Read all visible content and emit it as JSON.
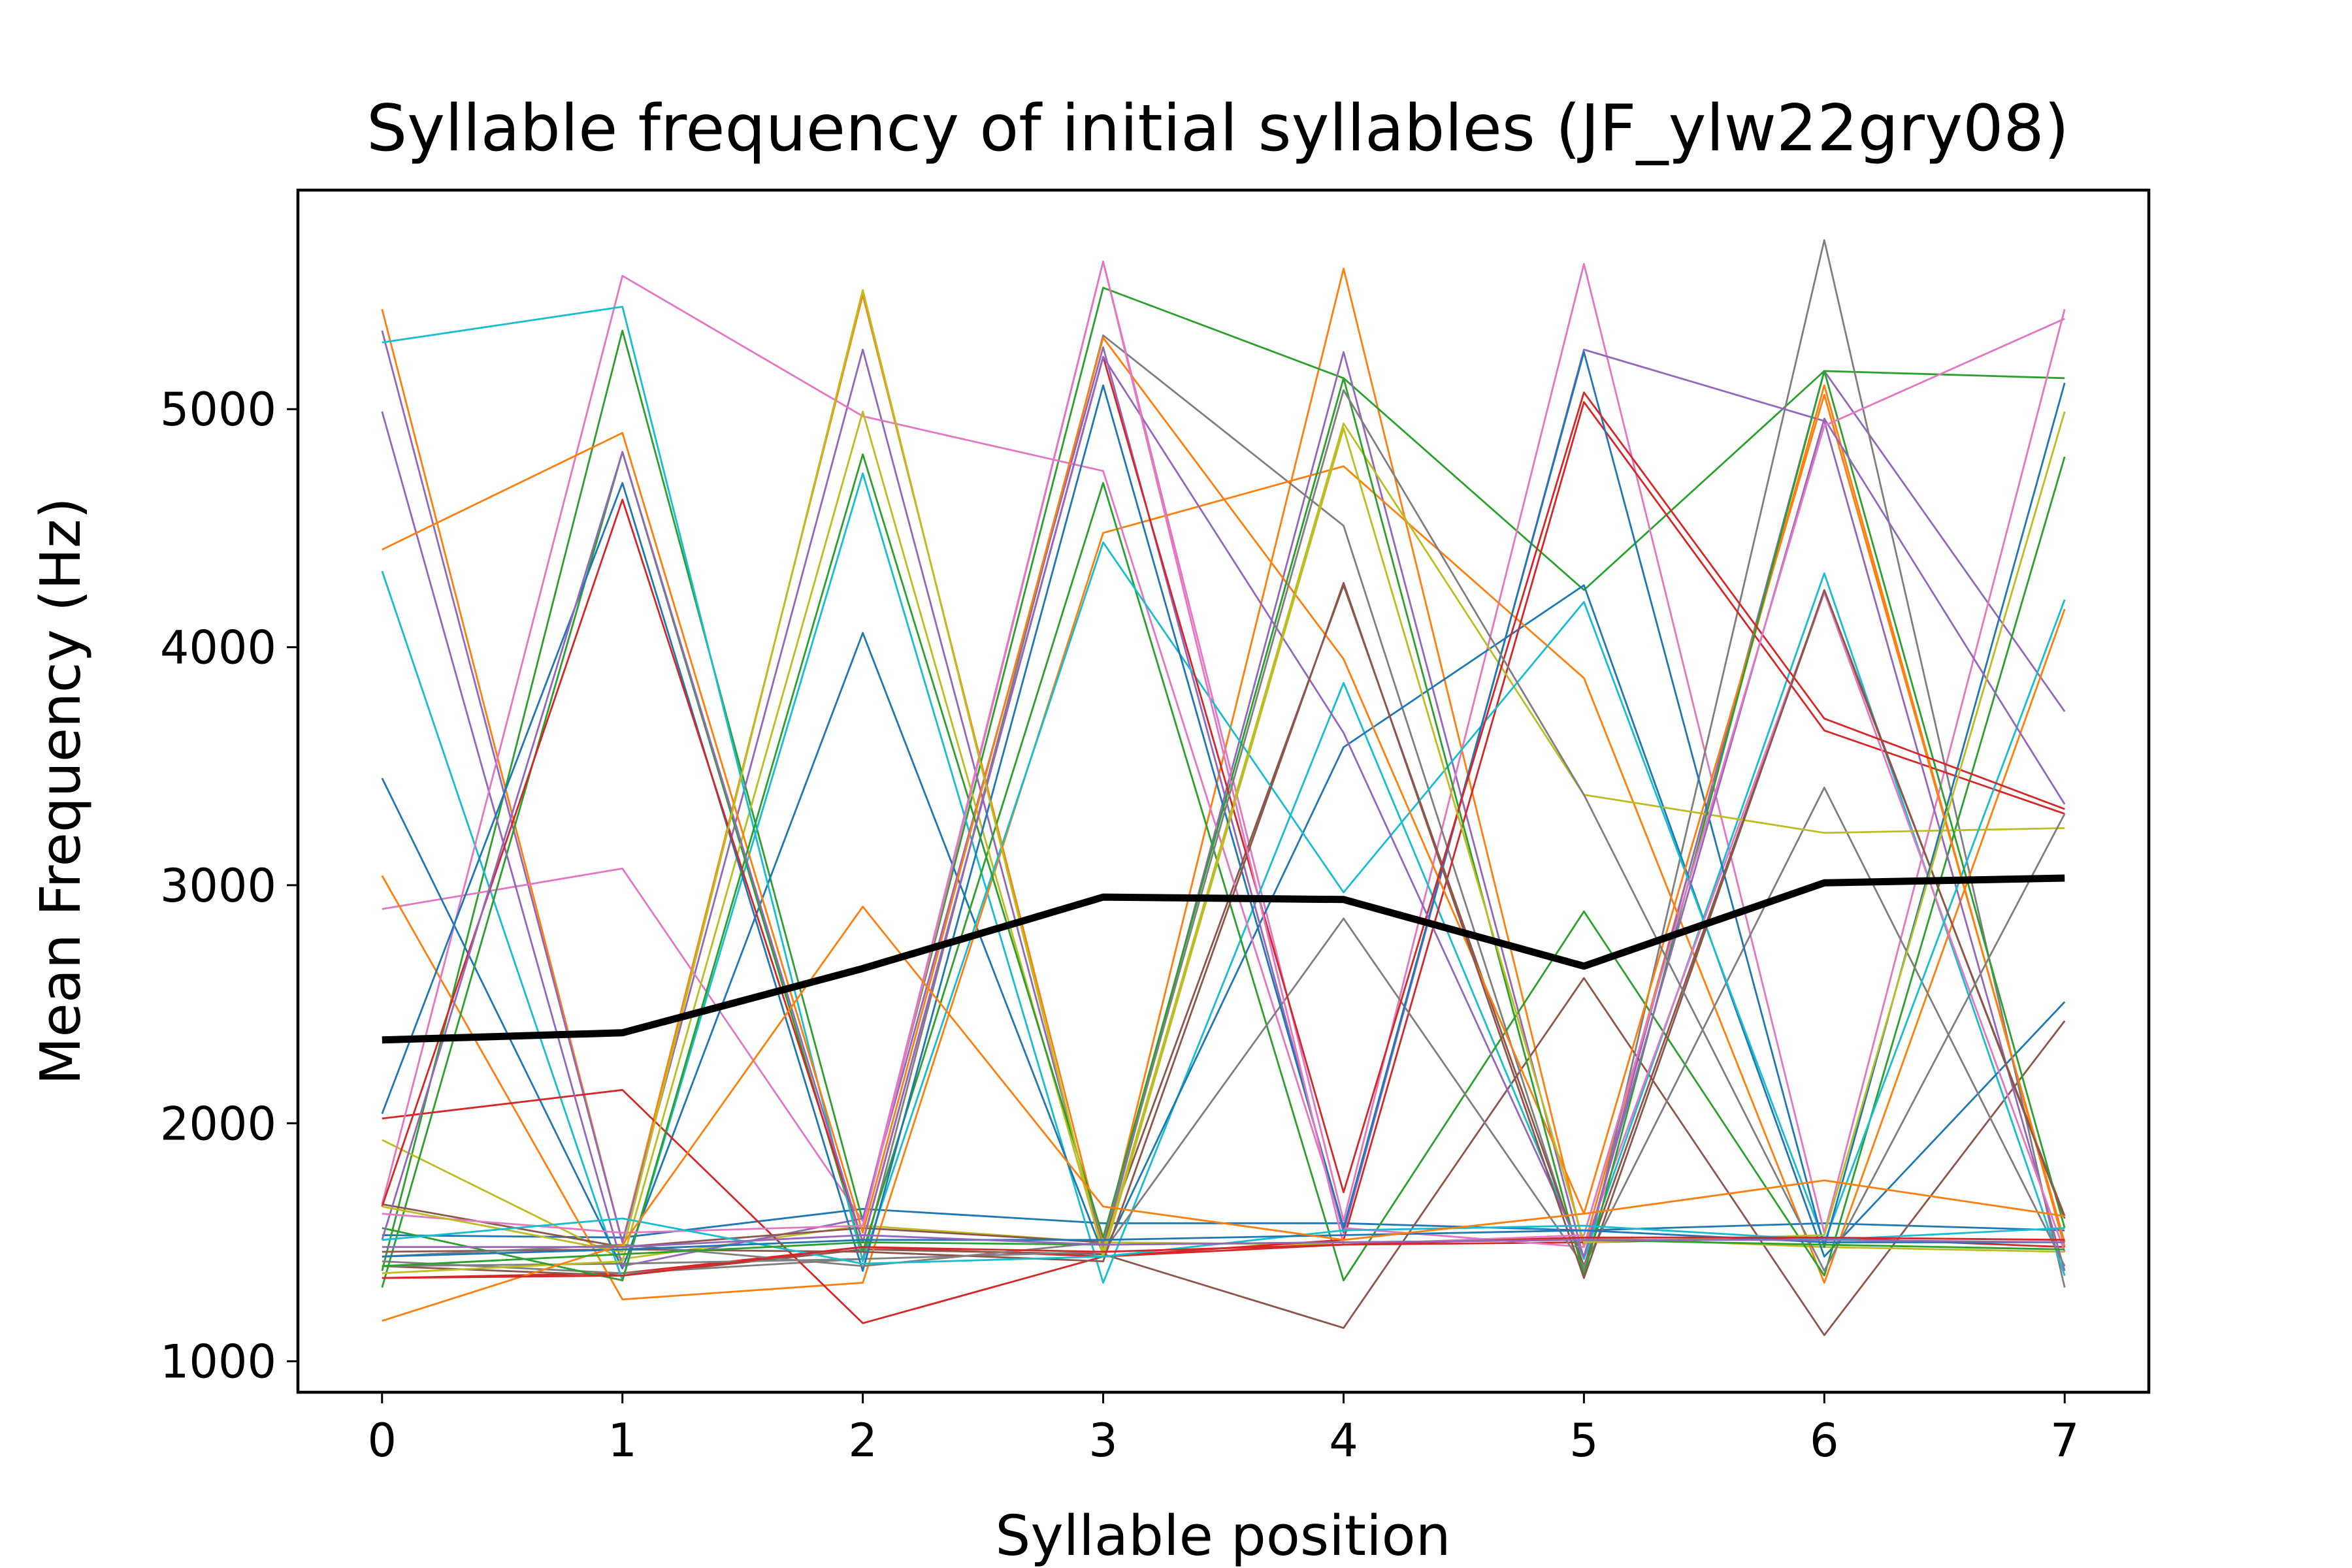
{
  "chart_data": {
    "type": "line",
    "title": "Syllable frequency of initial syllables (JF_ylw22gry08)",
    "xlabel": "Syllable position",
    "ylabel": "Mean Frequency (Hz)",
    "x": [
      0,
      1,
      2,
      3,
      4,
      5,
      6,
      7
    ],
    "xlim": [
      -0.35,
      7.35
    ],
    "ylim": [
      870,
      5920
    ],
    "x_ticks": [
      "0",
      "1",
      "2",
      "3",
      "4",
      "5",
      "6",
      "7"
    ],
    "y_ticks": [
      "1000",
      "2000",
      "3000",
      "4000",
      "5000"
    ],
    "grid": false,
    "legend": "none",
    "palette": [
      "#1f77b4",
      "#ff7f0e",
      "#2ca02c",
      "#d62728",
      "#9467bd",
      "#8c564b",
      "#e377c2",
      "#7f7f7f",
      "#bcbd22",
      "#17becf"
    ],
    "mean_color": "#000000",
    "series": [
      {
        "values": [
          1530,
          1520,
          1640,
          1580,
          1580,
          1550,
          1580,
          1550
        ]
      },
      {
        "values": [
          5420,
          1500,
          5480,
          1490,
          5590,
          1480,
          5100,
          1480
        ]
      },
      {
        "values": [
          1380,
          5330,
          1590,
          5510,
          5130,
          4240,
          5160,
          5130
        ]
      },
      {
        "values": [
          1350,
          1370,
          1480,
          1440,
          1490,
          1500,
          1520,
          1480
        ]
      },
      {
        "values": [
          5330,
          1500,
          5250,
          1470,
          5240,
          1430,
          5160,
          3730
        ]
      },
      {
        "values": [
          1400,
          1360,
          1470,
          1450,
          1140,
          2610,
          1110,
          2430
        ]
      },
      {
        "values": [
          2900,
          3070,
          1590,
          5620,
          1590,
          5610,
          1540,
          5420
        ]
      },
      {
        "values": [
          1420,
          1370,
          1430,
          5310,
          4510,
          1380,
          5710,
          1310
        ]
      },
      {
        "values": [
          1930,
          1430,
          1570,
          1500,
          1490,
          1520,
          1480,
          1460
        ]
      },
      {
        "values": [
          4320,
          1340,
          4730,
          1330,
          3850,
          1430,
          4310,
          1360
        ]
      },
      {
        "values": [
          3450,
          1390,
          4060,
          1450,
          3580,
          4260,
          1440,
          2510
        ]
      },
      {
        "values": [
          3040,
          1260,
          1330,
          4480,
          4760,
          3870,
          1330,
          4160
        ]
      },
      {
        "values": [
          1310,
          4820,
          1460,
          4690,
          1340,
          2890,
          1360,
          4800
        ]
      },
      {
        "values": [
          2020,
          2140,
          1160,
          1440,
          1510,
          5030,
          3650,
          3300
        ]
      },
      {
        "values": [
          4990,
          1400,
          1600,
          5260,
          1540,
          5250,
          4950,
          1380
        ]
      },
      {
        "values": [
          1660,
          1480,
          1560,
          1500,
          4260,
          1400,
          4230,
          1610
        ]
      },
      {
        "values": [
          1660,
          5560,
          4970,
          4740,
          1560,
          1480,
          4230,
          1460
        ]
      },
      {
        "values": [
          1400,
          1410,
          1430,
          1460,
          2860,
          1400,
          3410,
          1400
        ]
      },
      {
        "values": [
          1370,
          1420,
          4990,
          1460,
          4940,
          3380,
          3220,
          3240
        ]
      },
      {
        "values": [
          5280,
          5430,
          1420,
          4440,
          2970,
          4190,
          1500,
          4200
        ]
      },
      {
        "values": [
          2040,
          4690,
          1380,
          5100,
          1560,
          5240,
          1480,
          5110
        ]
      },
      {
        "values": [
          4410,
          4900,
          1540,
          5300,
          3950,
          1620,
          5060,
          1500
        ]
      },
      {
        "values": [
          1560,
          1340,
          4810,
          1520,
          5130,
          1360,
          5160,
          1560
        ]
      },
      {
        "values": [
          1650,
          4620,
          1500,
          5220,
          1710,
          5070,
          3700,
          3320
        ]
      },
      {
        "values": [
          1510,
          4820,
          1500,
          5220,
          3640,
          1440,
          4960,
          3340
        ]
      },
      {
        "values": [
          1460,
          1470,
          1460,
          1420,
          4270,
          1350,
          4240,
          1600
        ]
      },
      {
        "values": [
          1620,
          1540,
          1570,
          5620,
          1490,
          1530,
          4930,
          5380
        ]
      },
      {
        "values": [
          1440,
          1490,
          1400,
          1500,
          5080,
          3380,
          1380,
          3300
        ]
      },
      {
        "values": [
          1650,
          1460,
          5500,
          1440,
          4920,
          1500,
          1530,
          4990
        ]
      },
      {
        "values": [
          1510,
          1600,
          1410,
          1440,
          1550,
          1570,
          1510,
          1560
        ]
      },
      {
        "values": [
          1440,
          1470,
          1510,
          1510,
          1530,
          1550,
          1500,
          1500
        ]
      },
      {
        "values": [
          1170,
          1490,
          2910,
          1650,
          1510,
          1620,
          1760,
          1610
        ]
      },
      {
        "values": [
          1400,
          1450,
          1500,
          1490,
          1500,
          1510,
          1490,
          1470
        ]
      },
      {
        "values": [
          1350,
          1360,
          1480,
          1460,
          1490,
          1520,
          1520,
          1510
        ]
      },
      {
        "values": [
          1480,
          1480,
          1530,
          1490,
          1500,
          1510,
          1510,
          1500
        ]
      }
    ],
    "mean": {
      "values": [
        2350,
        2380,
        2650,
        2950,
        2940,
        2660,
        3010,
        3030
      ]
    }
  }
}
